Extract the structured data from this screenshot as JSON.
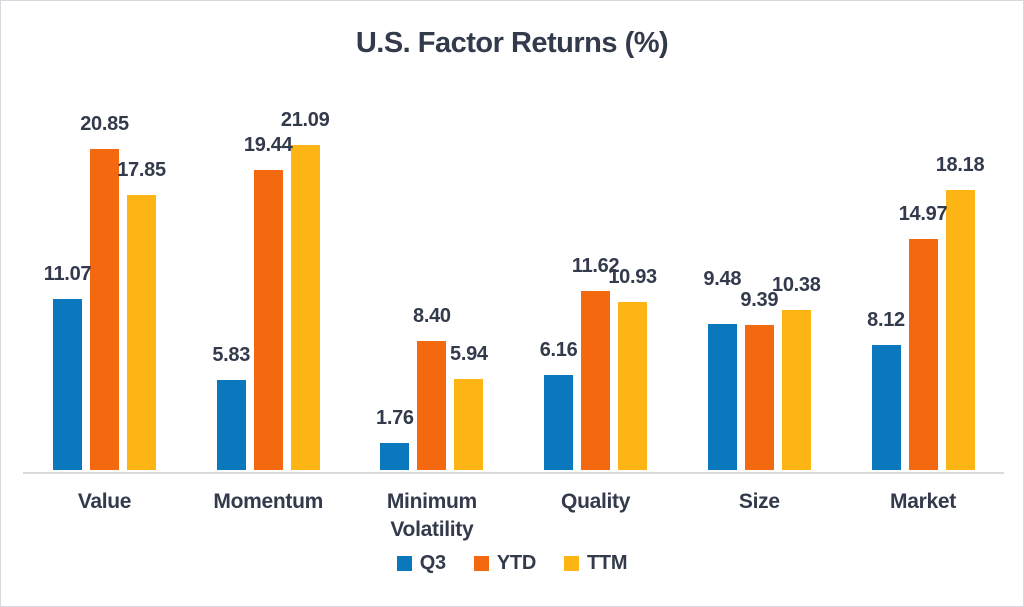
{
  "title": "U.S. Factor Returns (%)",
  "chart_data": {
    "type": "bar",
    "title": "U.S. Factor Returns (%)",
    "categories": [
      "Value",
      "Momentum",
      "Minimum Volatility",
      "Quality",
      "Size",
      "Market"
    ],
    "series": [
      {
        "name": "Q3",
        "color": "#0b78be",
        "values": [
          11.07,
          5.83,
          1.76,
          6.16,
          9.48,
          8.12
        ]
      },
      {
        "name": "YTD",
        "color": "#f4690f",
        "values": [
          20.85,
          19.44,
          8.4,
          11.62,
          9.39,
          14.97
        ]
      },
      {
        "name": "TTM",
        "color": "#fdb515",
        "values": [
          17.85,
          21.09,
          5.94,
          10.93,
          10.38,
          18.18
        ]
      }
    ],
    "value_label_decimals": 2,
    "ylim": [
      0,
      22
    ],
    "grid": false,
    "legend_position": "bottom",
    "colors": {
      "text": "#333a4b",
      "axis_line": "#dadada",
      "background": "#ffffff"
    }
  }
}
